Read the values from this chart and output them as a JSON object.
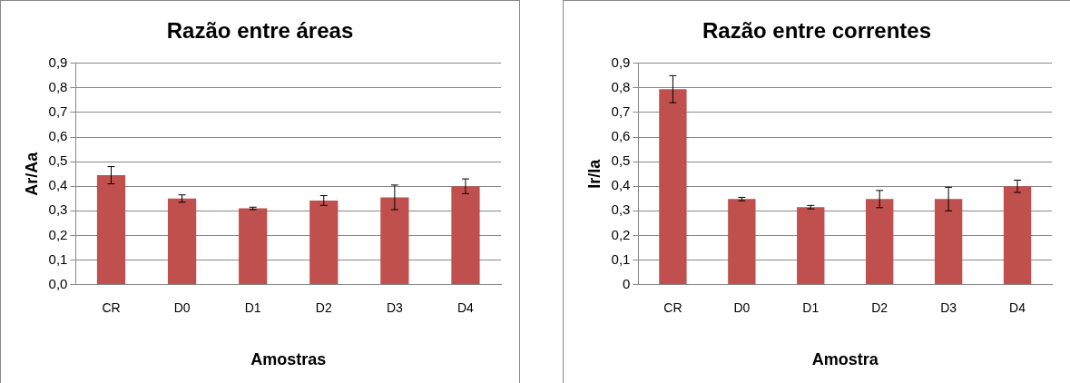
{
  "chart_data": [
    {
      "type": "bar",
      "title": "Razão entre áreas",
      "xlabel": "Amostras",
      "ylabel": "Ar/Aa",
      "categories": [
        "CR",
        "D0",
        "D1",
        "D2",
        "D3",
        "D4"
      ],
      "values": [
        0.445,
        0.35,
        0.31,
        0.342,
        0.355,
        0.4
      ],
      "errors": [
        0.035,
        0.015,
        0.005,
        0.02,
        0.05,
        0.03
      ],
      "color": "#c0504d",
      "ylim": [
        0,
        0.9
      ],
      "yticks": [
        {
          "value": 0,
          "label": "0,0"
        },
        {
          "value": 0.1,
          "label": "0,1"
        },
        {
          "value": 0.2,
          "label": "0,2"
        },
        {
          "value": 0.3,
          "label": "0,3"
        },
        {
          "value": 0.4,
          "label": "0,4"
        },
        {
          "value": 0.5,
          "label": "0,5"
        },
        {
          "value": 0.6,
          "label": "0,6"
        },
        {
          "value": 0.7,
          "label": "0,7"
        },
        {
          "value": 0.8,
          "label": "0,8"
        },
        {
          "value": 0.9,
          "label": "0,9"
        }
      ],
      "grid": "y"
    },
    {
      "type": "bar",
      "title": "Razão entre correntes",
      "xlabel": "Amostra",
      "ylabel": "Ir/Ia",
      "categories": [
        "CR",
        "D0",
        "D1",
        "D2",
        "D3",
        "D4"
      ],
      "values": [
        0.795,
        0.348,
        0.315,
        0.348,
        0.348,
        0.4
      ],
      "errors": [
        0.055,
        0.007,
        0.007,
        0.035,
        0.048,
        0.025
      ],
      "color": "#c0504d",
      "ylim": [
        0,
        0.9
      ],
      "yticks": [
        0,
        {
          "value": 0.1,
          "label": "0,1"
        },
        {
          "value": 0.2,
          "label": "0,2"
        },
        {
          "value": 0.3,
          "label": "0,3"
        },
        {
          "value": 0.4,
          "label": "0,4"
        },
        {
          "value": 0.5,
          "label": "0,5"
        },
        {
          "value": 0.6,
          "label": "0,6"
        },
        {
          "value": 0.7,
          "label": "0,7"
        },
        {
          "value": 0.8,
          "label": "0,8"
        },
        {
          "value": 0.9,
          "label": "0,9"
        }
      ],
      "grid": "y"
    }
  ]
}
